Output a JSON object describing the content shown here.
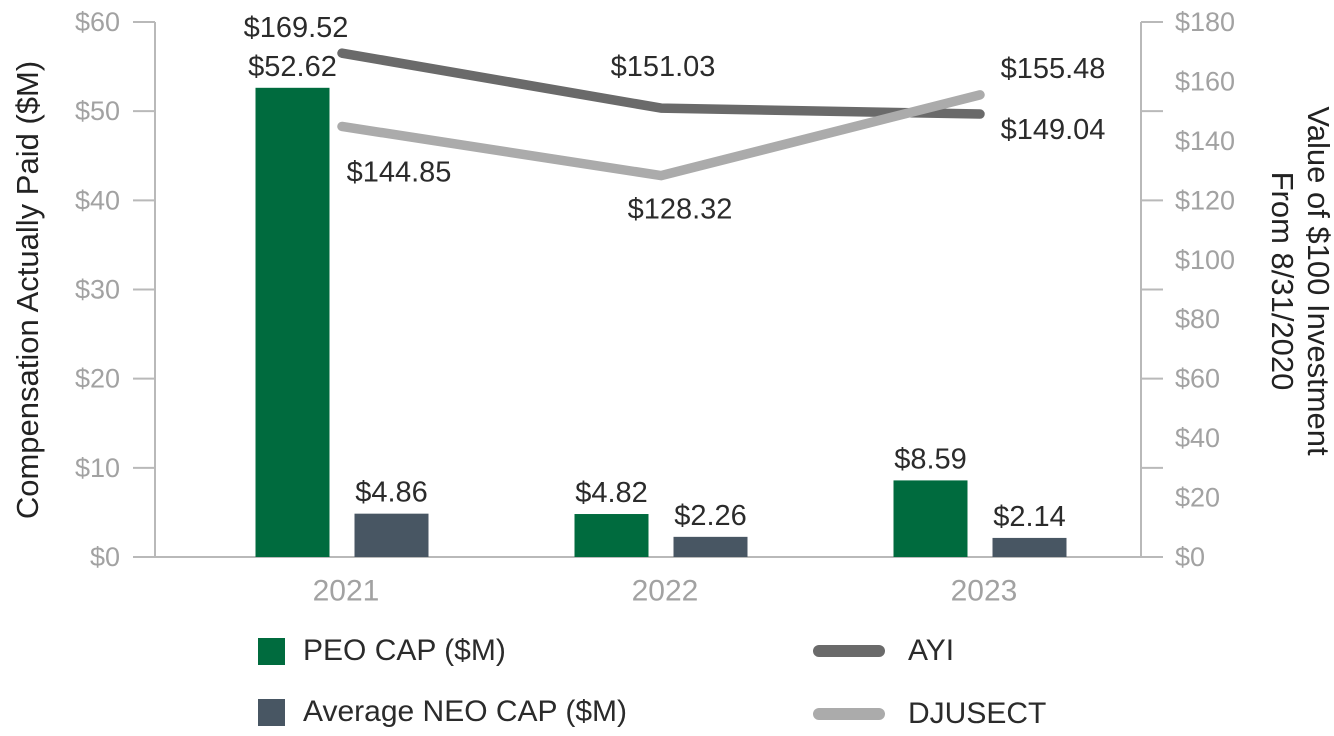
{
  "chart_data": {
    "type": "combo_bar_line",
    "categories": [
      "2021",
      "2022",
      "2023"
    ],
    "bar_series": [
      {
        "name": "PEO CAP ($M)",
        "color": "#006B3E",
        "axis": "left",
        "values": [
          52.62,
          4.82,
          8.59
        ],
        "labels": [
          "$52.62",
          "$4.82",
          "$8.59"
        ]
      },
      {
        "name": "Average NEO CAP ($M)",
        "color": "#485663",
        "axis": "left",
        "values": [
          4.86,
          2.26,
          2.14
        ],
        "labels": [
          "$4.86",
          "$2.26",
          "$2.14"
        ]
      }
    ],
    "line_series": [
      {
        "name": "AYI",
        "color": "#6A6A6A",
        "axis": "right",
        "values": [
          169.52,
          151.03,
          149.04
        ],
        "labels": [
          "$169.52",
          "$151.03",
          "$149.04"
        ]
      },
      {
        "name": "DJUSECT",
        "color": "#ABABAB",
        "axis": "right",
        "values": [
          144.85,
          128.32,
          155.48
        ],
        "labels": [
          "$144.85",
          "$128.32",
          "$155.48"
        ]
      }
    ],
    "left_axis": {
      "title": "Compensation Actually Paid ($M)",
      "min": 0,
      "max": 60,
      "label_step": 10,
      "tick_labels": [
        "$0",
        "$10",
        "$20",
        "$30",
        "$40",
        "$50",
        "$60"
      ]
    },
    "right_axis": {
      "title_line1": "Value of $100 Investment",
      "title_line2": "From 8/31/2020",
      "min": 0,
      "max": 180,
      "label_step": 20,
      "tick_step": 30,
      "tick_labels": [
        "$0",
        "$20",
        "$40",
        "$60",
        "$80",
        "$100",
        "$120",
        "$140",
        "$160",
        "$180"
      ]
    },
    "legend": {
      "bar_1": "PEO CAP ($M)",
      "bar_2": "Average NEO CAP ($M)",
      "line_1": "AYI",
      "line_2": "DJUSECT"
    }
  },
  "colors": {
    "axis_line": "#b9b9b9",
    "tick_text": "#a2a2a2",
    "year_text": "#a2a2a2",
    "data_label_text": "#2b2b2b"
  }
}
